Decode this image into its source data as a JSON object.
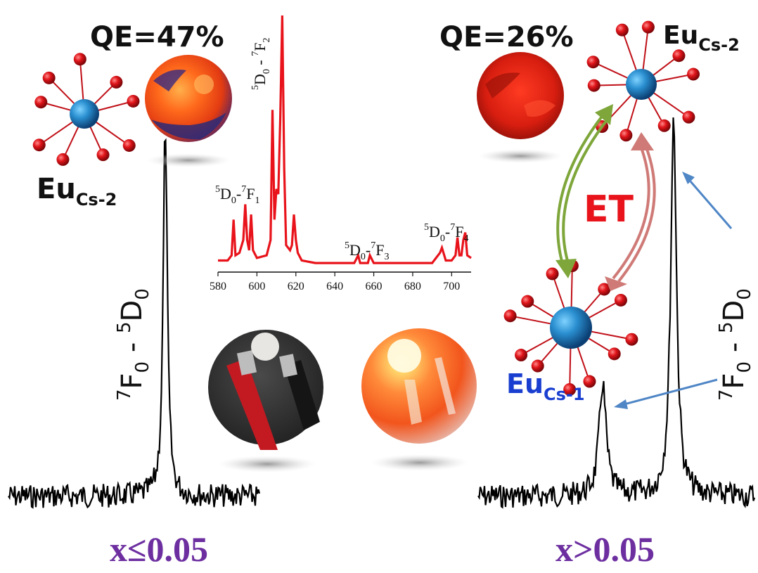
{
  "left_panel": {
    "qe_label": "QE=47%",
    "site_label_main": "Eu",
    "site_label_sub": "Cs-2",
    "peak_label": "7F0 - 5D0",
    "peak_sup1": "7",
    "peak_F": "F",
    "peak_sub1": "0",
    "peak_dash": " - ",
    "peak_sup2": "5",
    "peak_D": "D",
    "peak_sub2": "0",
    "condition": "x≤0.05"
  },
  "right_panel": {
    "qe_label": "QE=26%",
    "site_top_main": "Eu",
    "site_top_sub": "Cs-2",
    "site_bottom_main": "Eu",
    "site_bottom_sub": "Cs-1",
    "energy_transfer_label": "ET",
    "peak_sup1": "7",
    "peak_F": "F",
    "peak_sub1": "0",
    "peak_dash": " - ",
    "peak_sup2": "5",
    "peak_D": "D",
    "peak_sub2": "0",
    "condition": "x>0.05"
  },
  "colors": {
    "spectrum_red": "#e8131b",
    "trace_black": "#000000",
    "atom_center": "#1f7fc0",
    "atom_ligand": "#d40f12",
    "bond": "#c01018",
    "arrow_green": "#7ea63a",
    "arrow_pink": "#cf7a76",
    "pointer_blue": "#4f86c6",
    "condition_purple": "#6d2fa0",
    "label_blue": "#1a3fd0"
  },
  "chart_data": {
    "type": "line",
    "x_ticks": [
      580,
      600,
      620,
      640,
      660,
      680,
      700
    ],
    "xlim": [
      580,
      710
    ],
    "series": [
      {
        "x": [
          580,
          585,
          587,
          588,
          589,
          591,
          593,
          594,
          595,
          596,
          597,
          598,
          600,
          605,
          607,
          608,
          609,
          610,
          611,
          612,
          613,
          614,
          615,
          617,
          618,
          619,
          620,
          621,
          623,
          630,
          640,
          650,
          652,
          653,
          655,
          657,
          658,
          660,
          670,
          680,
          690,
          694,
          695,
          697,
          700,
          702,
          703,
          704,
          705,
          706,
          707,
          708,
          710
        ],
        "y": [
          0.04,
          0.04,
          0.06,
          0.2,
          0.06,
          0.07,
          0.12,
          0.26,
          0.12,
          0.08,
          0.22,
          0.08,
          0.05,
          0.06,
          0.12,
          0.63,
          0.2,
          0.32,
          0.3,
          0.6,
          1.0,
          0.4,
          0.1,
          0.08,
          0.1,
          0.22,
          0.12,
          0.07,
          0.04,
          0.03,
          0.03,
          0.03,
          0.06,
          0.03,
          0.03,
          0.03,
          0.06,
          0.03,
          0.03,
          0.03,
          0.03,
          0.07,
          0.09,
          0.04,
          0.04,
          0.06,
          0.13,
          0.06,
          0.06,
          0.12,
          0.15,
          0.06,
          0.05
        ]
      }
    ],
    "annotations": [
      {
        "text": "5D0-7F1",
        "sup1": "5",
        "D": "D",
        "sub1": "0",
        "dash": "-",
        "sup2": "7",
        "F": "F",
        "sub2": "1"
      },
      {
        "text": "5D0-7F2",
        "sup1": "5",
        "D": "D",
        "sub1": "0",
        "dash": " - ",
        "sup2": "7",
        "F": "F",
        "sub2": "2"
      },
      {
        "text": "5D0-7F3",
        "sup1": "5",
        "D": "D",
        "sub1": "0",
        "dash": "-",
        "sup2": "7",
        "F": "F",
        "sub2": "3"
      },
      {
        "text": "5D0-7F4",
        "sup1": "5",
        "D": "D",
        "sub1": "0",
        "dash": "-",
        "sup2": "7",
        "F": "F",
        "sub2": "4"
      }
    ],
    "grid": false
  }
}
